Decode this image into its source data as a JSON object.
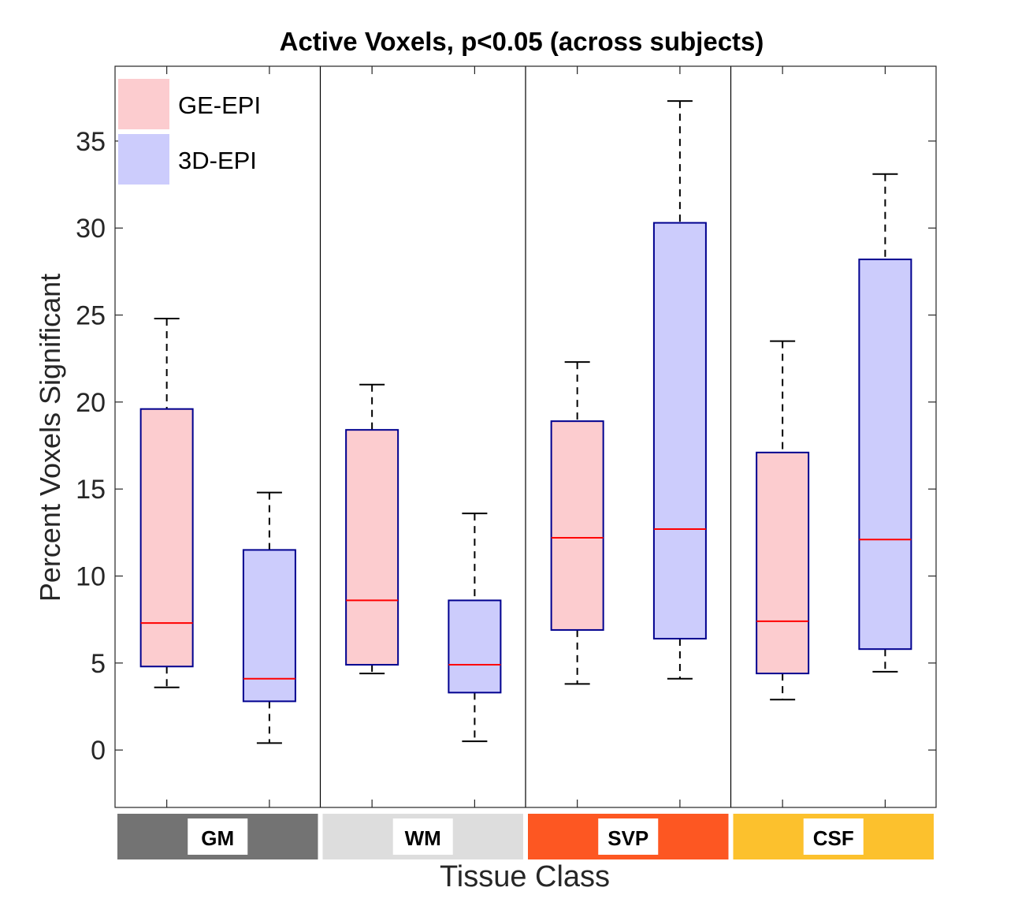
{
  "chart_data": {
    "type": "boxplot",
    "title": "Active Voxels, p<0.05 (across subjects)",
    "xlabel": "Tissue Class",
    "ylabel": "Percent Voxels Significant",
    "ylim": [
      -3.3,
      39.3
    ],
    "yticks": [
      0,
      5,
      10,
      15,
      20,
      25,
      30,
      35
    ],
    "legend": {
      "placement": "top-left",
      "entries": [
        {
          "name": "GE-EPI",
          "fill": "#fccccf"
        },
        {
          "name": "3D-EPI",
          "fill": "#ccccfc"
        }
      ]
    },
    "colors": {
      "box_edge": "#00008f",
      "median": "#ff0000",
      "whisker": "#000000"
    },
    "groups": [
      {
        "label": "GM",
        "color": "#737373",
        "boxes": [
          {
            "series": "GE-EPI",
            "whisker_low": 3.6,
            "q1": 4.8,
            "median": 7.3,
            "q3": 19.6,
            "whisker_high": 24.8
          },
          {
            "series": "3D-EPI",
            "whisker_low": 0.4,
            "q1": 2.8,
            "median": 4.1,
            "q3": 11.5,
            "whisker_high": 14.8
          }
        ]
      },
      {
        "label": "WM",
        "color": "#dddddd",
        "boxes": [
          {
            "series": "GE-EPI",
            "whisker_low": 4.4,
            "q1": 4.9,
            "median": 8.6,
            "q3": 18.4,
            "whisker_high": 21.0
          },
          {
            "series": "3D-EPI",
            "whisker_low": 0.5,
            "q1": 3.3,
            "median": 4.9,
            "q3": 8.6,
            "whisker_high": 13.6
          }
        ]
      },
      {
        "label": "SVP",
        "color": "#fd5722",
        "boxes": [
          {
            "series": "GE-EPI",
            "whisker_low": 3.8,
            "q1": 6.9,
            "median": 12.2,
            "q3": 18.9,
            "whisker_high": 22.3
          },
          {
            "series": "3D-EPI",
            "whisker_low": 4.1,
            "q1": 6.4,
            "median": 12.7,
            "q3": 30.3,
            "whisker_high": 37.3
          }
        ]
      },
      {
        "label": "CSF",
        "color": "#fcc12d",
        "boxes": [
          {
            "series": "GE-EPI",
            "whisker_low": 2.9,
            "q1": 4.4,
            "median": 7.4,
            "q3": 17.1,
            "whisker_high": 23.5
          },
          {
            "series": "3D-EPI",
            "whisker_low": 4.5,
            "q1": 5.8,
            "median": 12.1,
            "q3": 28.2,
            "whisker_high": 33.1
          }
        ]
      }
    ]
  }
}
